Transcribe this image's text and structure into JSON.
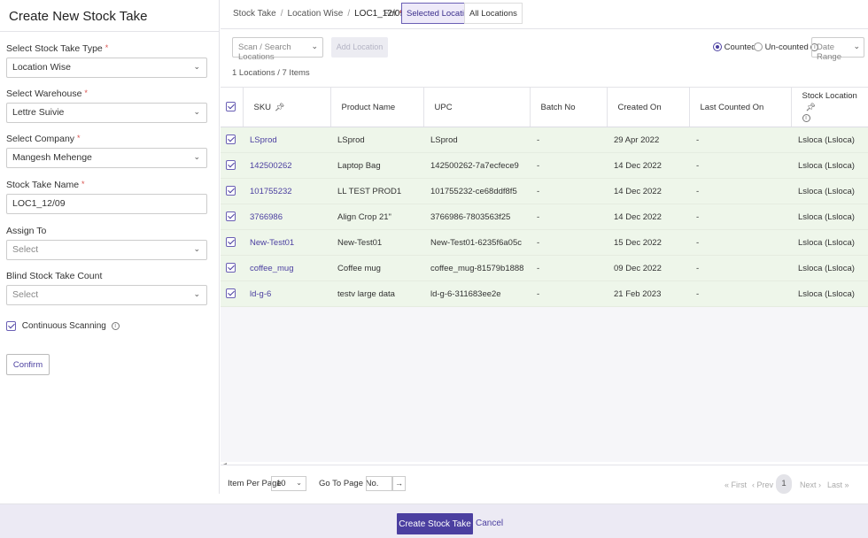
{
  "left": {
    "title": "Create New Stock Take",
    "stock_take_type": {
      "label": "Select Stock Take Type",
      "value": "Location Wise"
    },
    "warehouse": {
      "label": "Select Warehouse",
      "value": "Lettre Suivie"
    },
    "company": {
      "label": "Select Company",
      "value": "Mangesh Mehenge"
    },
    "name": {
      "label": "Stock Take Name",
      "value": "LOC1_12/09"
    },
    "assign_to": {
      "label": "Assign To",
      "placeholder": "Select"
    },
    "blind_count": {
      "label": "Blind Stock Take Count",
      "placeholder": "Select"
    },
    "continuous_scanning": {
      "label": "Continuous Scanning",
      "checked": true
    },
    "confirm_label": "Confirm"
  },
  "topbar": {
    "breadcrumb": [
      "Stock Take",
      "Location Wise",
      "LOC1_12/09"
    ],
    "for_label": "For",
    "toggle": {
      "selected": "Selected Locations",
      "all": "All Locations"
    }
  },
  "toolbar": {
    "scan_placeholder": "Scan / Search Locations",
    "add_location": "Add Location",
    "counted": "Counted",
    "uncounted": "Un-counted",
    "date_range": "Date Range",
    "count_text": "1 Locations / 7 Items"
  },
  "table": {
    "columns": [
      "SKU",
      "Product Name",
      "UPC",
      "Batch No",
      "Created On",
      "Last Counted On",
      "Stock Location"
    ],
    "rows": [
      [
        "LSprod",
        "LSprod",
        "LSprod",
        "-",
        "29 Apr 2022",
        "-",
        "Lsloca (Lsloca)"
      ],
      [
        "142500262",
        "Laptop Bag",
        "142500262-7a7ecfece9",
        "-",
        "14 Dec 2022",
        "-",
        "Lsloca (Lsloca)"
      ],
      [
        "101755232",
        "LL TEST PROD1",
        "101755232-ce68ddf8f5",
        "-",
        "14 Dec 2022",
        "-",
        "Lsloca (Lsloca)"
      ],
      [
        "3766986",
        "Align Crop 21\"",
        "3766986-7803563f25",
        "-",
        "14 Dec 2022",
        "-",
        "Lsloca (Lsloca)"
      ],
      [
        "New-Test01",
        "New-Test01",
        "New-Test01-6235f6a05c",
        "-",
        "15 Dec 2022",
        "-",
        "Lsloca (Lsloca)"
      ],
      [
        "coffee_mug",
        "Coffee mug",
        "coffee_mug-81579b1888",
        "-",
        "09 Dec 2022",
        "-",
        "Lsloca (Lsloca)"
      ],
      [
        "ld-g-6",
        "testv large data",
        "ld-g-6-311683ee2e",
        "-",
        "21 Feb 2023",
        "-",
        "Lsloca (Lsloca)"
      ]
    ]
  },
  "pagination": {
    "item_per_page_label": "Item Per Page",
    "item_per_page": "10",
    "goto_label": "Go To Page No.",
    "first": "« First",
    "prev": "‹ Prev",
    "current": "1",
    "next": "Next ›",
    "last": "Last »"
  },
  "footer": {
    "create_label": "Create Stock Take",
    "cancel_label": "Cancel"
  },
  "colors": {
    "accent": "#4b3fa0",
    "row_bg": "#eef6ea",
    "footer_bg": "#eceaf4"
  }
}
